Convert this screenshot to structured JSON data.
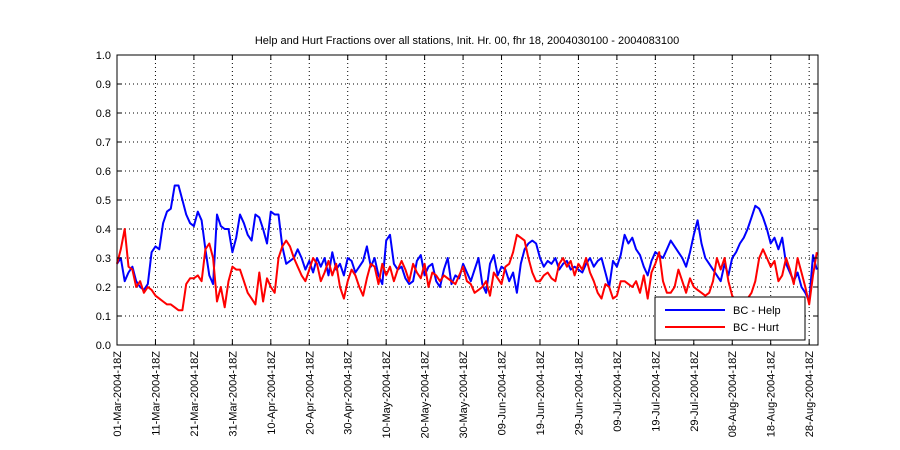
{
  "chart_data": {
    "type": "line",
    "title": "Help and Hurt Fractions over all stations, Init. Hr. 00, fhr 18, 2004030100 - 2004083100",
    "xlabel": "",
    "ylabel": "",
    "x_start_label": "01-Mar-2004",
    "x_unit": "days since 01-Mar-2004 18Z",
    "xlim": [
      0,
      182.3
    ],
    "ylim": [
      0,
      1
    ],
    "grid": true,
    "legend_position": "bottom-right",
    "y_ticks": [
      "0.0",
      "0.1",
      "0.2",
      "0.3",
      "0.4",
      "0.5",
      "0.6",
      "0.7",
      "0.8",
      "0.9",
      "1.0"
    ],
    "x_ticks": [
      0,
      10,
      20,
      30,
      40,
      50,
      60,
      70,
      80,
      90,
      100,
      110,
      120,
      130,
      140,
      150,
      160,
      170,
      180
    ],
    "x_tick_labels": [
      "01-Mar-2004-18Z",
      "11-Mar-2004-18Z",
      "21-Mar-2004-18Z",
      "31-Mar-2004-18Z",
      "10-Apr-2004-18Z",
      "20-Apr-2004-18Z",
      "30-Apr-2004-18Z",
      "10-May-2004-18Z",
      "20-May-2004-18Z",
      "30-May-2004-18Z",
      "09-Jun-2004-18Z",
      "19-Jun-2004-18Z",
      "29-Jun-2004-18Z",
      "09-Jul-2004-18Z",
      "19-Jul-2004-18Z",
      "29-Jul-2004-18Z",
      "08-Aug-2004-18Z",
      "18-Aug-2004-18Z",
      "28-Aug-2004-18Z"
    ],
    "series": [
      {
        "name": "BC - Help",
        "color": "#0000ff",
        "values": [
          0.28,
          0.3,
          0.22,
          0.25,
          0.27,
          0.22,
          0.2,
          0.19,
          0.21,
          0.32,
          0.34,
          0.33,
          0.42,
          0.46,
          0.47,
          0.55,
          0.55,
          0.5,
          0.45,
          0.42,
          0.41,
          0.46,
          0.43,
          0.33,
          0.24,
          0.21,
          0.45,
          0.41,
          0.4,
          0.4,
          0.32,
          0.37,
          0.45,
          0.42,
          0.38,
          0.36,
          0.45,
          0.44,
          0.4,
          0.35,
          0.46,
          0.45,
          0.45,
          0.34,
          0.28,
          0.29,
          0.3,
          0.33,
          0.3,
          0.26,
          0.29,
          0.25,
          0.3,
          0.27,
          0.3,
          0.24,
          0.32,
          0.26,
          0.28,
          0.24,
          0.3,
          0.29,
          0.25,
          0.27,
          0.29,
          0.34,
          0.27,
          0.3,
          0.24,
          0.21,
          0.36,
          0.38,
          0.28,
          0.26,
          0.27,
          0.23,
          0.21,
          0.22,
          0.29,
          0.31,
          0.24,
          0.27,
          0.28,
          0.22,
          0.2,
          0.26,
          0.3,
          0.21,
          0.24,
          0.23,
          0.28,
          0.25,
          0.22,
          0.26,
          0.3,
          0.21,
          0.18,
          0.28,
          0.31,
          0.24,
          0.27,
          0.26,
          0.22,
          0.25,
          0.18,
          0.28,
          0.33,
          0.35,
          0.36,
          0.35,
          0.3,
          0.27,
          0.29,
          0.28,
          0.3,
          0.26,
          0.28,
          0.29,
          0.26,
          0.27,
          0.26,
          0.25,
          0.28,
          0.3,
          0.27,
          0.29,
          0.3,
          0.25,
          0.2,
          0.29,
          0.27,
          0.31,
          0.38,
          0.35,
          0.37,
          0.33,
          0.31,
          0.27,
          0.24,
          0.29,
          0.32,
          0.31,
          0.3,
          0.33,
          0.36,
          0.34,
          0.32,
          0.3,
          0.27,
          0.32,
          0.38,
          0.43,
          0.35,
          0.3,
          0.28,
          0.26,
          0.24,
          0.22,
          0.28,
          0.24,
          0.3,
          0.32,
          0.35,
          0.37,
          0.4,
          0.44,
          0.48,
          0.47,
          0.44,
          0.4,
          0.35,
          0.37,
          0.33,
          0.37,
          0.28,
          0.25,
          0.22,
          0.25,
          0.2,
          0.18,
          0.15,
          0.31,
          0.26
        ]
      },
      {
        "name": "BC - Hurt",
        "color": "#ff0000",
        "values": [
          0.28,
          0.33,
          0.4,
          0.27,
          0.26,
          0.2,
          0.22,
          0.18,
          0.2,
          0.19,
          0.17,
          0.16,
          0.15,
          0.14,
          0.14,
          0.13,
          0.12,
          0.12,
          0.21,
          0.23,
          0.23,
          0.24,
          0.22,
          0.33,
          0.35,
          0.3,
          0.15,
          0.2,
          0.13,
          0.22,
          0.27,
          0.26,
          0.26,
          0.22,
          0.18,
          0.16,
          0.14,
          0.25,
          0.15,
          0.23,
          0.2,
          0.18,
          0.3,
          0.34,
          0.36,
          0.34,
          0.3,
          0.27,
          0.24,
          0.22,
          0.26,
          0.3,
          0.28,
          0.22,
          0.25,
          0.29,
          0.24,
          0.28,
          0.2,
          0.16,
          0.22,
          0.26,
          0.24,
          0.2,
          0.17,
          0.23,
          0.28,
          0.27,
          0.21,
          0.28,
          0.24,
          0.27,
          0.22,
          0.26,
          0.29,
          0.26,
          0.22,
          0.28,
          0.25,
          0.23,
          0.28,
          0.2,
          0.25,
          0.24,
          0.22,
          0.24,
          0.23,
          0.22,
          0.21,
          0.24,
          0.27,
          0.22,
          0.21,
          0.18,
          0.19,
          0.2,
          0.22,
          0.17,
          0.25,
          0.23,
          0.21,
          0.27,
          0.28,
          0.32,
          0.38,
          0.37,
          0.36,
          0.3,
          0.25,
          0.22,
          0.22,
          0.24,
          0.25,
          0.23,
          0.22,
          0.28,
          0.3,
          0.27,
          0.29,
          0.24,
          0.28,
          0.26,
          0.3,
          0.25,
          0.22,
          0.18,
          0.16,
          0.21,
          0.2,
          0.16,
          0.17,
          0.22,
          0.22,
          0.21,
          0.2,
          0.22,
          0.18,
          0.24,
          0.16,
          0.25,
          0.28,
          0.32,
          0.22,
          0.18,
          0.18,
          0.2,
          0.26,
          0.22,
          0.18,
          0.23,
          0.2,
          0.19,
          0.18,
          0.17,
          0.18,
          0.22,
          0.3,
          0.26,
          0.3,
          0.22,
          0.17,
          0.15,
          0.14,
          0.14,
          0.16,
          0.18,
          0.22,
          0.3,
          0.33,
          0.3,
          0.27,
          0.29,
          0.22,
          0.24,
          0.3,
          0.26,
          0.21,
          0.3,
          0.25,
          0.2,
          0.14,
          0.24,
          0.32
        ]
      }
    ]
  }
}
